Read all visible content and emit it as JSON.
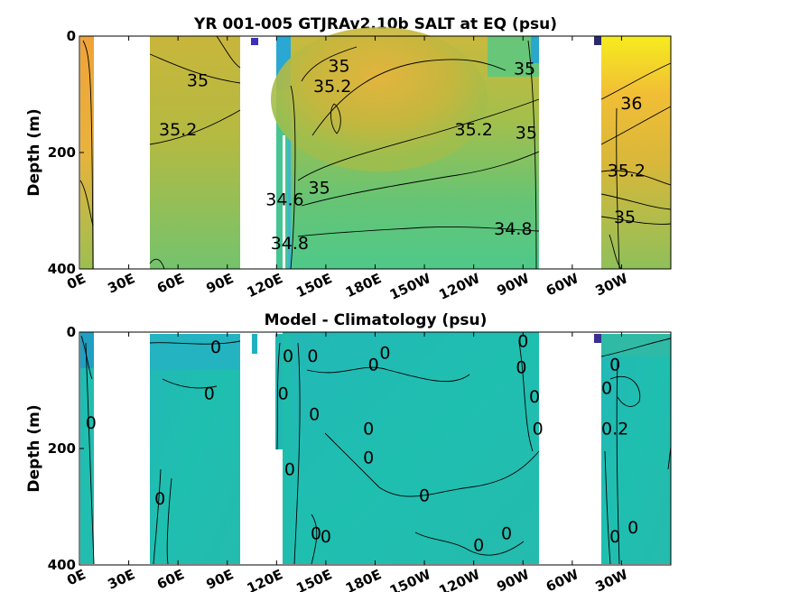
{
  "chart_data": [
    {
      "type": "heatmap",
      "title": "YR 001-005 GTJRAv2.10b SALT at EQ (psu)",
      "ylabel": "Depth (m)",
      "xlabel": "",
      "x_ticks": [
        "0E",
        "30E",
        "60E",
        "90E",
        "120E",
        "150E",
        "180E",
        "150W",
        "120W",
        "90W",
        "60W",
        "30W"
      ],
      "y_ticks": [
        "0",
        "200",
        "400"
      ],
      "ylim": [
        400,
        0
      ],
      "contour_labels": [
        {
          "text": "35",
          "lon": 72,
          "depth": 75
        },
        {
          "text": "35.2",
          "lon": 60,
          "depth": 160
        },
        {
          "text": "35.2",
          "lon": 154,
          "depth": 85
        },
        {
          "text": "35",
          "lon": 158,
          "depth": 50
        },
        {
          "text": "35",
          "lon": 271,
          "depth": 55
        },
        {
          "text": "35.2",
          "lon": 240,
          "depth": 160
        },
        {
          "text": "35",
          "lon": 272,
          "depth": 165
        },
        {
          "text": "35",
          "lon": 146,
          "depth": 260
        },
        {
          "text": "34.6",
          "lon": 125,
          "depth": 280
        },
        {
          "text": "34.8",
          "lon": 128,
          "depth": 355
        },
        {
          "text": "34.8",
          "lon": 264,
          "depth": 330
        },
        {
          "text": "36",
          "lon": 336,
          "depth": 115
        },
        {
          "text": "35.2",
          "lon": 333,
          "depth": 230
        },
        {
          "text": "35",
          "lon": 332,
          "depth": 310
        }
      ]
    },
    {
      "type": "heatmap",
      "title": "Model - Climatology (psu)",
      "ylabel": "Depth (m)",
      "xlabel": "",
      "x_ticks": [
        "0E",
        "30E",
        "60E",
        "90E",
        "120E",
        "150E",
        "180E",
        "150W",
        "120W",
        "90W",
        "60W",
        "30W"
      ],
      "y_ticks": [
        "0",
        "200",
        "400"
      ],
      "ylim": [
        400,
        0
      ],
      "contour_labels": [
        {
          "text": "0",
          "lon": 83,
          "depth": 25
        },
        {
          "text": "0",
          "lon": 79,
          "depth": 105
        },
        {
          "text": "0",
          "lon": 7,
          "depth": 155
        },
        {
          "text": "0",
          "lon": 49,
          "depth": 285
        },
        {
          "text": "0",
          "lon": 127,
          "depth": 40
        },
        {
          "text": "0",
          "lon": 124,
          "depth": 105
        },
        {
          "text": "0",
          "lon": 128,
          "depth": 235
        },
        {
          "text": "0",
          "lon": 142,
          "depth": 40
        },
        {
          "text": "0",
          "lon": 143,
          "depth": 140
        },
        {
          "text": "0",
          "lon": 186,
          "depth": 35
        },
        {
          "text": "0",
          "lon": 179,
          "depth": 55
        },
        {
          "text": "0",
          "lon": 176,
          "depth": 165
        },
        {
          "text": "0",
          "lon": 176,
          "depth": 215
        },
        {
          "text": "0",
          "lon": 210,
          "depth": 280
        },
        {
          "text": "0",
          "lon": 144,
          "depth": 345
        },
        {
          "text": "0",
          "lon": 150,
          "depth": 350
        },
        {
          "text": "0",
          "lon": 243,
          "depth": 365
        },
        {
          "text": "0",
          "lon": 260,
          "depth": 345
        },
        {
          "text": "0",
          "lon": 270,
          "depth": 15
        },
        {
          "text": "0",
          "lon": 269,
          "depth": 60
        },
        {
          "text": "0",
          "lon": 277,
          "depth": 110
        },
        {
          "text": "0",
          "lon": 279,
          "depth": 165
        },
        {
          "text": "0",
          "lon": 321,
          "depth": 95
        },
        {
          "text": "0",
          "lon": 326,
          "depth": 55
        },
        {
          "text": "0.2",
          "lon": 326,
          "depth": 165
        },
        {
          "text": "0",
          "lon": 326,
          "depth": 350
        },
        {
          "text": "0",
          "lon": 337,
          "depth": 335
        }
      ]
    }
  ]
}
